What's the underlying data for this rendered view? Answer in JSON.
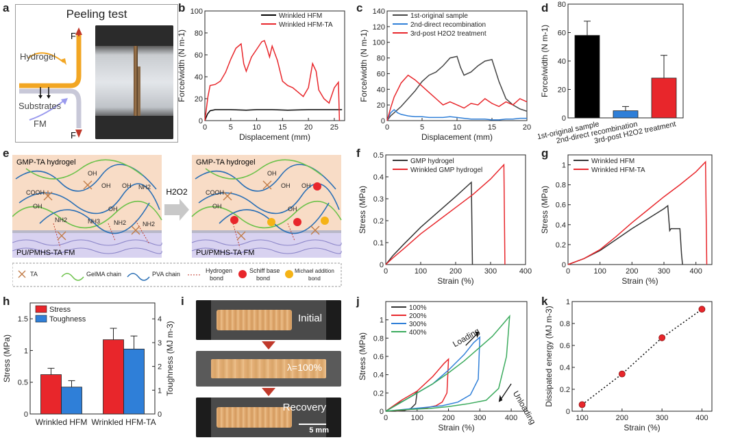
{
  "labels": {
    "a": "a",
    "b": "b",
    "c": "c",
    "d": "d",
    "e": "e",
    "f": "f",
    "g": "g",
    "h": "h",
    "i": "i",
    "j": "j",
    "k": "k"
  },
  "panel_a": {
    "title": "Peeling test",
    "force_top": "F",
    "force_bottom": "F",
    "hydrogel": "Hydrogel",
    "substrates": "Substrates",
    "fm": "FM"
  },
  "panel_e": {
    "left_top": "GMP-TA hydrogel",
    "left_bottom": "PU/PMHS-TA FM",
    "right_top": "GMP-TA hydrogel",
    "right_bottom": "PU/PMHS-TA FM",
    "arrow_label": "H2O2",
    "groups": [
      "COOH",
      "OH",
      "OH",
      "OH",
      "NH2",
      "OH",
      "OH",
      "NH2",
      "NH3",
      "NH2",
      "NH2"
    ],
    "legend": [
      "TA",
      "GelMA chain",
      "PVA chain",
      "Hydrogen bond",
      "Schiff base bond",
      "Michael addition bond"
    ],
    "legend_lines": {
      "hydrogen": [
        "Hydrogen",
        "bond"
      ],
      "schiff": [
        "Schiff base",
        "bond"
      ],
      "michael": [
        "Michael addition",
        "bond"
      ]
    },
    "colors": {
      "gelma": "#6cc24a",
      "pva": "#2a6fb5",
      "hbond": "#c0392b",
      "schiff": "#e8262b",
      "michael": "#f5b316",
      "ta": "#c07a45"
    }
  },
  "panel_i": {
    "initial": "Initial",
    "stretch": "λ=100%",
    "recovery": "Recovery",
    "scale": "5 mm"
  },
  "chart_data": [
    {
      "id": "b",
      "type": "line",
      "xlabel": "Displacement (mm)",
      "ylabel": "Force/width (N m-1)",
      "xlim": [
        0,
        27
      ],
      "ylim": [
        0,
        100
      ],
      "xticks": [
        0,
        5,
        10,
        15,
        20,
        25
      ],
      "yticks": [
        0,
        20,
        40,
        60,
        80,
        100
      ],
      "series": [
        {
          "name": "Wrinkled HFM",
          "color": "#000000",
          "x": [
            0,
            0.5,
            1,
            2,
            3,
            5,
            8,
            10,
            13,
            16,
            20,
            23,
            26.5
          ],
          "y": [
            0,
            6,
            9,
            10,
            10,
            10,
            9.5,
            10,
            10,
            9.5,
            10,
            10,
            10
          ]
        },
        {
          "name": "Wrinkled HFM-TA",
          "color": "#e8262b",
          "x": [
            0,
            0.6,
            1,
            2,
            3,
            4,
            5,
            6,
            7,
            7.5,
            8,
            9,
            10,
            11,
            11.5,
            12,
            12.5,
            13,
            14,
            15,
            16,
            17,
            18,
            19,
            20,
            20.8,
            21.5,
            22,
            23,
            24,
            25,
            25.8,
            26
          ],
          "y": [
            0,
            22,
            32,
            33,
            36,
            44,
            56,
            66,
            70,
            52,
            45,
            58,
            65,
            72,
            73,
            66,
            58,
            68,
            55,
            36,
            32,
            30,
            26,
            22,
            30,
            52,
            45,
            28,
            20,
            16,
            30,
            35,
            0
          ]
        }
      ]
    },
    {
      "id": "c",
      "type": "line",
      "xlabel": "Displacement (mm)",
      "ylabel": "Force/width (N m-1)",
      "xlim": [
        0,
        20
      ],
      "ylim": [
        0,
        140
      ],
      "xticks": [
        0,
        5,
        10,
        15,
        20
      ],
      "yticks": [
        0,
        20,
        40,
        60,
        80,
        100,
        120,
        140
      ],
      "series": [
        {
          "name": "1st-original sample",
          "color": "#444444",
          "x": [
            0,
            0.5,
            1,
            2,
            3,
            4,
            5,
            6,
            7,
            8,
            9,
            10,
            10.5,
            11,
            12,
            13,
            14,
            15,
            16,
            17,
            18,
            19,
            20
          ],
          "y": [
            0,
            6,
            10,
            18,
            28,
            38,
            50,
            58,
            62,
            70,
            80,
            82,
            68,
            58,
            62,
            70,
            76,
            78,
            50,
            28,
            20,
            15,
            12
          ]
        },
        {
          "name": "2nd-direct recombination",
          "color": "#2f7fd8",
          "x": [
            0,
            0.5,
            1,
            1.5,
            2,
            3,
            4,
            5,
            6,
            7,
            8,
            9,
            10,
            11,
            12,
            13,
            14,
            15,
            16,
            17,
            18,
            19,
            20
          ],
          "y": [
            0,
            10,
            14,
            10,
            8,
            6,
            5,
            5,
            4,
            4,
            4,
            5,
            4,
            3,
            2,
            2,
            2,
            1,
            1,
            2,
            2,
            3,
            3
          ]
        },
        {
          "name": "3rd-post H2O2 treatment",
          "color": "#e8262b",
          "x": [
            0,
            0.5,
            1,
            2,
            3,
            4,
            5,
            6,
            7,
            8,
            9,
            10,
            11,
            12,
            13,
            14,
            15,
            16,
            17,
            18,
            19,
            20
          ],
          "y": [
            0,
            16,
            30,
            48,
            58,
            52,
            44,
            36,
            28,
            20,
            24,
            20,
            16,
            22,
            20,
            28,
            22,
            18,
            24,
            20,
            28,
            24
          ]
        }
      ]
    },
    {
      "id": "d",
      "type": "bar",
      "ylabel": "Force/width (N m-1)",
      "ylim": [
        0,
        80
      ],
      "yticks": [
        0,
        20,
        40,
        60,
        80
      ],
      "categories": [
        "1st-original sample",
        "2nd-direct recombination",
        "3rd-post H2O2 treatment"
      ],
      "values": [
        58,
        5,
        28
      ],
      "errors": [
        10,
        3,
        16
      ],
      "colors": [
        "#000000",
        "#2f7fd8",
        "#e8262b"
      ]
    },
    {
      "id": "f",
      "type": "line",
      "xlabel": "Strain (%)",
      "ylabel": "Stress (MPa)",
      "xlim": [
        0,
        400
      ],
      "ylim": [
        0,
        0.5
      ],
      "xticks": [
        0,
        100,
        200,
        300,
        400
      ],
      "yticks": [
        0.0,
        0.1,
        0.2,
        0.3,
        0.4,
        0.5
      ],
      "series": [
        {
          "name": "GMP hydrogel",
          "color": "#333333",
          "x": [
            0,
            20,
            50,
            100,
            150,
            200,
            245,
            248
          ],
          "y": [
            0,
            0.04,
            0.09,
            0.17,
            0.24,
            0.31,
            0.375,
            0
          ]
        },
        {
          "name": "Wrinkled GMP hydrogel",
          "color": "#e8262b",
          "x": [
            0,
            20,
            50,
            100,
            150,
            200,
            250,
            300,
            338,
            341
          ],
          "y": [
            0,
            0.03,
            0.07,
            0.14,
            0.2,
            0.26,
            0.32,
            0.39,
            0.455,
            0
          ]
        }
      ]
    },
    {
      "id": "g",
      "type": "line",
      "xlabel": "Strain (%)",
      "ylabel": "Stress (MPa)",
      "xlim": [
        0,
        450
      ],
      "ylim": [
        0,
        1.1
      ],
      "xticks": [
        0,
        100,
        200,
        300,
        400
      ],
      "yticks": [
        0.0,
        0.2,
        0.4,
        0.6,
        0.8,
        1.0
      ],
      "series": [
        {
          "name": "Wrinkled HFM",
          "color": "#333333",
          "x": [
            0,
            50,
            100,
            150,
            200,
            250,
            300,
            312,
            318,
            322,
            340,
            350,
            355,
            358
          ],
          "y": [
            0,
            0.06,
            0.14,
            0.25,
            0.36,
            0.46,
            0.56,
            0.59,
            0.34,
            0.36,
            0.36,
            0.36,
            0.1,
            0
          ]
        },
        {
          "name": "Wrinkled HFM-TA",
          "color": "#e8262b",
          "x": [
            0,
            50,
            100,
            150,
            200,
            250,
            300,
            350,
            400,
            430,
            434
          ],
          "y": [
            0,
            0.06,
            0.15,
            0.28,
            0.42,
            0.55,
            0.68,
            0.8,
            0.93,
            1.03,
            0
          ]
        }
      ]
    },
    {
      "id": "h",
      "type": "bar",
      "ylabel": "Stress (MPa)",
      "y2label": "Toughness (MJ m-3)",
      "ylim": [
        0,
        1.75
      ],
      "yticks": [
        0.0,
        0.5,
        1.0,
        1.5
      ],
      "y2lim": [
        0,
        4.67
      ],
      "y2ticks": [
        0,
        1,
        2,
        3,
        4
      ],
      "categories": [
        "Wrinkled HFM",
        "Wrinkled HFM-TA"
      ],
      "series": [
        {
          "name": "Stress",
          "color": "#e8262b",
          "values": [
            0.62,
            1.17
          ],
          "errors": [
            0.1,
            0.18
          ],
          "axis": "left"
        },
        {
          "name": "Toughness",
          "color": "#2f7fd8",
          "values": [
            1.13,
            2.73
          ],
          "errors": [
            0.27,
            0.55
          ],
          "axis": "right"
        }
      ]
    },
    {
      "id": "j",
      "type": "line",
      "xlabel": "Strain (%)",
      "ylabel": "Stress (MPa)",
      "xlim": [
        0,
        450
      ],
      "ylim": [
        0,
        1.2
      ],
      "xticks": [
        0,
        100,
        200,
        300,
        400
      ],
      "yticks": [
        0.0,
        0.2,
        0.4,
        0.6,
        0.8,
        1.0
      ],
      "annotations": [
        "Loading",
        "Unloading"
      ],
      "series": [
        {
          "name": "100%",
          "color": "#333333",
          "x": [
            0,
            30,
            60,
            90,
            100,
            95,
            80,
            60,
            30,
            10,
            0
          ],
          "y": [
            0,
            0.07,
            0.12,
            0.18,
            0.21,
            0.08,
            0.03,
            0.01,
            0.0,
            0.0,
            0
          ]
        },
        {
          "name": "200%",
          "color": "#e8262b",
          "x": [
            0,
            50,
            100,
            150,
            185,
            200,
            195,
            180,
            160,
            120,
            80,
            40,
            0
          ],
          "y": [
            0,
            0.12,
            0.22,
            0.38,
            0.52,
            0.57,
            0.2,
            0.1,
            0.06,
            0.03,
            0.02,
            0.01,
            0
          ]
        },
        {
          "name": "300%",
          "color": "#2f7fd8",
          "x": [
            0,
            50,
            100,
            150,
            200,
            250,
            280,
            300,
            295,
            270,
            230,
            180,
            120,
            60,
            0
          ],
          "y": [
            0,
            0.1,
            0.2,
            0.3,
            0.45,
            0.62,
            0.75,
            0.81,
            0.35,
            0.18,
            0.1,
            0.06,
            0.04,
            0.02,
            0
          ]
        },
        {
          "name": "400%",
          "color": "#3aaa5c",
          "x": [
            0,
            50,
            100,
            150,
            200,
            250,
            300,
            340,
            370,
            395,
            385,
            360,
            320,
            260,
            200,
            140,
            80,
            30,
            0
          ],
          "y": [
            0,
            0.1,
            0.2,
            0.3,
            0.42,
            0.55,
            0.7,
            0.82,
            0.94,
            1.04,
            0.6,
            0.25,
            0.12,
            0.08,
            0.05,
            0.03,
            0.02,
            0.01,
            0
          ]
        }
      ]
    },
    {
      "id": "k",
      "type": "scatter",
      "xlabel": "Strain (%)",
      "ylabel": "Dissipated energy (MJ m-3)",
      "xlim": [
        75,
        425
      ],
      "ylim": [
        0,
        1.0
      ],
      "xticks": [
        100,
        200,
        300,
        400
      ],
      "yticks": [
        0.0,
        0.2,
        0.4,
        0.6,
        0.8,
        1.0
      ],
      "x": [
        100,
        200,
        300,
        400
      ],
      "y": [
        0.06,
        0.34,
        0.67,
        0.93
      ],
      "color": "#e8262b"
    }
  ]
}
